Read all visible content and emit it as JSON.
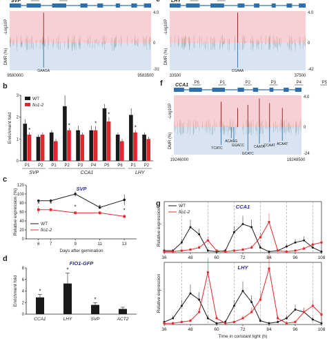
{
  "colors": {
    "gene": "#2f6fad",
    "pink": "#f6d0d4",
    "blue": "#d8e4f2",
    "wt": "#1a1a1a",
    "mut": "#e0282e",
    "title": "#2a2aa0",
    "peakRed": "#8b1a1a",
    "peakBlue": "#2f6fad"
  },
  "panels": {
    "a": {
      "letter": "a",
      "gene": "SVP",
      "probes": [
        "P1",
        "P2"
      ],
      "ylabel_top": "-Log10P",
      "ylabel_bottom": "DMR (%)",
      "top_max": "4.0",
      "bottom_min": "-31",
      "x_start": "9580000",
      "x_end": "9583500",
      "motifs": [
        "GAAGA"
      ]
    },
    "e": {
      "letter": "e",
      "gene": "LHY",
      "probes": [
        "P2",
        "P1"
      ],
      "ylabel_top": "-Log10P",
      "ylabel_bottom": "DMR (%)",
      "top_max": "4.0",
      "bottom_min": "-42",
      "x_start": "33500",
      "x_end": "37500",
      "motifs": [
        "CGAAA"
      ]
    },
    "f": {
      "letter": "f",
      "gene": "CCA1",
      "probes": [
        "P6",
        "P1",
        "P2",
        "P3",
        "P4",
        "P5"
      ],
      "ylabel_top": "-Log10P",
      "ylabel_bottom": "DMR (%)",
      "top_max": "4.0",
      "bottom_min": "-24",
      "x_start": "19246000",
      "x_end": "19248500",
      "motifs": [
        "TCATC",
        "ACAGG",
        "GGACC",
        "GCATC",
        "CAATA",
        "CCAAT",
        "ACAAT"
      ]
    }
  },
  "chart_data": [
    {
      "id": "b",
      "type": "bar",
      "ylabel": "Enrichment fold",
      "ylim": [
        0,
        3
      ],
      "yticks": [
        "0",
        "1",
        "2",
        "3"
      ],
      "categories": [
        "P1",
        "P2",
        "P1",
        "P2",
        "P3",
        "P4",
        "P5",
        "P6",
        "P1",
        "P2"
      ],
      "groups": [
        "SVP",
        "CCA1",
        "LHY"
      ],
      "series": [
        {
          "name": "WT",
          "values": [
            1.7,
            1.1,
            1.3,
            2.5,
            1.4,
            1.4,
            2.4,
            1.2,
            2.1,
            1.2
          ]
        },
        {
          "name": "fio1-2",
          "values": [
            1.2,
            1.2,
            0.9,
            1.4,
            1.2,
            1.4,
            1.8,
            0.9,
            1.3,
            1.0
          ]
        }
      ],
      "errors": [
        [
          0.2,
          0.1,
          0.1,
          0.5,
          0.2,
          0.2,
          0.2,
          0.1,
          0.3,
          0.1
        ],
        [
          0.1,
          0.1,
          0.1,
          0.1,
          0.1,
          0.2,
          0.2,
          0.1,
          0.1,
          0.1
        ]
      ],
      "stars": [
        "*",
        "",
        "",
        "*",
        "",
        "*",
        "*",
        "",
        "*",
        ""
      ]
    },
    {
      "id": "c",
      "type": "line",
      "title": "SVP",
      "xlabel": "Days after gemination",
      "ylabel": "Relative expression (%)",
      "ylim": [
        0,
        120
      ],
      "yticks": [
        "0",
        "20",
        "40",
        "60",
        "80",
        "100",
        "120"
      ],
      "x": [
        6,
        7,
        9,
        11,
        13
      ],
      "series": [
        {
          "name": "WT",
          "values": [
            85,
            85,
            100,
            70,
            87
          ]
        },
        {
          "name": "fio1-2",
          "values": [
            65,
            65,
            58,
            58,
            50
          ]
        }
      ],
      "errors": [
        [
          3,
          3,
          6,
          3,
          12
        ],
        [
          8,
          4,
          4,
          4,
          4
        ]
      ],
      "stars": [
        "*",
        "*",
        "*",
        "*",
        "*"
      ]
    },
    {
      "id": "d",
      "type": "bar",
      "title": "FIO1-GFP",
      "ylabel": "Enrichment fold",
      "ylim": [
        0,
        8
      ],
      "yticks": [
        "0",
        "2",
        "4",
        "6",
        "8"
      ],
      "categories": [
        "CCA1",
        "LHY",
        "SVP",
        "ACT2"
      ],
      "values": [
        2.9,
        5.3,
        1.6,
        0.9
      ],
      "errors": [
        0.5,
        1.8,
        0.4,
        0.3
      ],
      "stars": [
        "*",
        "*",
        "*",
        ""
      ]
    },
    {
      "id": "g1",
      "type": "line",
      "title": "CCA1",
      "ylabel": "Relative expression",
      "xlabel": "",
      "x": [
        36,
        40,
        44,
        48,
        52,
        56,
        60,
        64,
        68,
        72,
        76,
        80,
        84,
        88,
        92,
        96,
        100,
        104,
        108
      ],
      "xticks": [
        "36",
        "48",
        "60",
        "72",
        "84",
        "96",
        "108"
      ],
      "series": [
        {
          "name": "WT",
          "values": [
            0.02,
            0.02,
            0.1,
            0.25,
            0.18,
            0.02,
            0.01,
            0.02,
            0.2,
            0.28,
            0.25,
            0.05,
            0.01,
            0.02,
            0.06,
            0.1,
            0.12,
            0.05,
            0.01
          ]
        },
        {
          "name": "fio1-2",
          "values": [
            0.01,
            0.01,
            0.02,
            0.03,
            0.05,
            0.12,
            0.02,
            0.01,
            0.02,
            0.03,
            0.05,
            0.15,
            0.3,
            0.02,
            0.01,
            0.02,
            0.04,
            0.08,
            0.1
          ]
        }
      ]
    },
    {
      "id": "g2",
      "type": "line",
      "title": "LHY",
      "ylabel": "Relative expression",
      "xlabel": "Time in constant light (h)",
      "x": [
        36,
        40,
        44,
        48,
        52,
        56,
        60,
        64,
        68,
        72,
        76,
        80,
        84,
        88,
        92,
        96,
        100,
        104,
        108
      ],
      "xticks": [
        "36",
        "48",
        "60",
        "72",
        "84",
        "96",
        "108"
      ],
      "series": [
        {
          "name": "WT",
          "values": [
            0.02,
            0.05,
            0.15,
            0.25,
            0.2,
            0.05,
            0.01,
            0.02,
            0.15,
            0.27,
            0.18,
            0.03,
            0.01,
            0.02,
            0.05,
            0.12,
            0.1,
            0.04,
            0.01
          ]
        },
        {
          "name": "fio1-2",
          "values": [
            0.01,
            0.01,
            0.02,
            0.03,
            0.1,
            0.42,
            0.05,
            0.01,
            0.02,
            0.05,
            0.1,
            0.2,
            0.45,
            0.05,
            0.01,
            0.02,
            0.1,
            0.15,
            0.08
          ]
        }
      ]
    }
  ],
  "labels": {
    "b": "b",
    "c": "c",
    "d": "d",
    "g": "g"
  }
}
